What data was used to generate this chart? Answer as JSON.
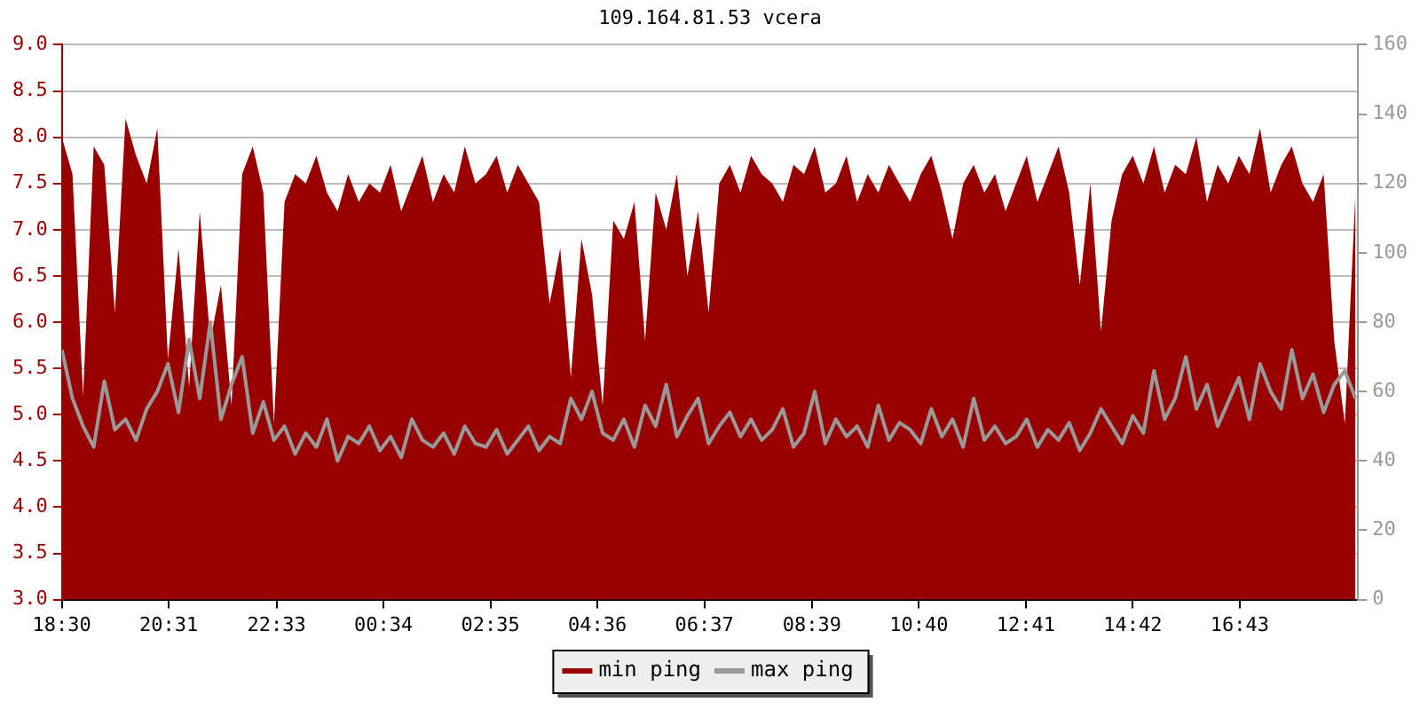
{
  "chart_data": {
    "type": "area",
    "title": "109.164.81.53 vcera",
    "x": [
      "--01-01T18:30",
      "--01-01T18:42",
      "--01-01T18:54",
      "--01-01T19:06",
      "--01-01T19:18",
      "--01-01T19:30",
      "--01-01T19:42",
      "--01-01T19:54",
      "--01-01T20:06",
      "--01-01T20:18",
      "--01-01T20:30",
      "--01-01T20:42",
      "--01-01T20:54",
      "--01-01T21:06",
      "--01-01T21:18",
      "--01-01T21:30",
      "--01-01T21:42",
      "--01-01T21:54",
      "--01-01T22:06",
      "--01-01T22:18",
      "--01-01T22:30",
      "--01-01T22:42",
      "--01-01T22:54",
      "--01-01T23:06",
      "--01-01T23:18",
      "--01-01T23:30",
      "--01-01T23:42",
      "--01-01T23:54",
      "--01-02T00:06",
      "--01-02T00:18",
      "--01-02T00:30",
      "--01-02T00:42",
      "--01-02T00:54",
      "--01-02T01:06",
      "--01-02T01:18",
      "--01-02T01:30",
      "--01-02T01:42",
      "--01-02T01:54",
      "--01-02T02:06",
      "--01-02T02:18",
      "--01-02T02:30",
      "--01-02T02:42",
      "--01-02T02:54",
      "--01-02T03:06",
      "--01-02T03:18",
      "--01-02T03:30",
      "--01-02T03:42",
      "--01-02T03:54",
      "--01-02T04:06",
      "--01-02T04:18",
      "--01-02T04:30",
      "--01-02T04:42",
      "--01-02T04:54",
      "--01-02T05:06",
      "--01-02T05:18",
      "--01-02T05:30",
      "--01-02T05:42",
      "--01-02T05:54",
      "--01-02T06:06",
      "--01-02T06:18",
      "--01-02T06:30",
      "--01-02T06:42",
      "--01-02T06:54",
      "--01-02T07:06",
      "--01-02T07:18",
      "--01-02T07:30",
      "--01-02T07:42",
      "--01-02T07:54",
      "--01-02T08:06",
      "--01-02T08:18",
      "--01-02T08:30",
      "--01-02T08:42",
      "--01-02T08:54",
      "--01-02T09:06",
      "--01-02T09:18",
      "--01-02T09:30",
      "--01-02T09:42",
      "--01-02T09:54",
      "--01-02T10:06",
      "--01-02T10:18",
      "--01-02T10:30",
      "--01-02T10:42",
      "--01-02T10:54",
      "--01-02T11:06",
      "--01-02T11:18",
      "--01-02T11:30",
      "--01-02T11:42",
      "--01-02T11:54",
      "--01-02T12:06",
      "--01-02T12:18",
      "--01-02T12:30",
      "--01-02T12:42",
      "--01-02T12:54",
      "--01-02T13:06",
      "--01-02T13:18",
      "--01-02T13:30",
      "--01-02T13:42",
      "--01-02T13:54",
      "--01-02T14:06",
      "--01-02T14:18",
      "--01-02T14:30",
      "--01-02T14:42",
      "--01-02T14:54",
      "--01-02T15:06",
      "--01-02T15:18",
      "--01-02T15:30",
      "--01-02T15:42",
      "--01-02T15:54",
      "--01-02T16:06",
      "--01-02T16:18",
      "--01-02T16:30",
      "--01-02T16:42",
      "--01-02T16:54",
      "--01-02T17:06",
      "--01-02T17:18",
      "--01-02T17:30",
      "--01-02T17:42",
      "--01-02T17:54",
      "--01-02T18:06",
      "--01-02T18:18",
      "--01-02T18:30",
      "--01-02T18:42",
      "--01-02T18:54"
    ],
    "series": [
      {
        "name": "min ping",
        "color": "#990000",
        "values": [
          8.0,
          7.6,
          5.2,
          7.9,
          7.7,
          6.1,
          8.2,
          7.8,
          7.5,
          8.1,
          5.6,
          6.8,
          5.3,
          7.2,
          5.8,
          6.4,
          5.1,
          7.6,
          7.9,
          7.4,
          4.9,
          7.3,
          7.6,
          7.5,
          7.8,
          7.4,
          7.2,
          7.6,
          7.3,
          7.5,
          7.4,
          7.7,
          7.2,
          7.5,
          7.8,
          7.3,
          7.6,
          7.4,
          7.9,
          7.5,
          7.6,
          7.8,
          7.4,
          7.7,
          7.5,
          7.3,
          6.2,
          6.8,
          5.4,
          6.9,
          6.3,
          5.1,
          7.1,
          6.9,
          7.3,
          5.8,
          7.4,
          7.0,
          7.6,
          6.5,
          7.2,
          6.1,
          7.5,
          7.7,
          7.4,
          7.8,
          7.6,
          7.5,
          7.3,
          7.7,
          7.6,
          7.9,
          7.4,
          7.5,
          7.8,
          7.3,
          7.6,
          7.4,
          7.7,
          7.5,
          7.3,
          7.6,
          7.8,
          7.4,
          6.9,
          7.5,
          7.7,
          7.4,
          7.6,
          7.2,
          7.5,
          7.8,
          7.3,
          7.6,
          7.9,
          7.4,
          6.4,
          7.5,
          5.9,
          7.1,
          7.6,
          7.8,
          7.5,
          7.9,
          7.4,
          7.7,
          7.6,
          8.0,
          7.3,
          7.7,
          7.5,
          7.8,
          7.6,
          8.1,
          7.4,
          7.7,
          7.9,
          7.5,
          7.3,
          7.6,
          5.8,
          4.9,
          7.4
        ]
      },
      {
        "name": "max ping",
        "type": "line",
        "axis": "y2",
        "color": "#999999",
        "values": [
          72,
          58,
          50,
          44,
          63,
          49,
          52,
          46,
          55,
          60,
          68,
          54,
          75,
          58,
          80,
          52,
          62,
          70,
          48,
          57,
          46,
          50,
          42,
          48,
          44,
          52,
          40,
          47,
          45,
          50,
          43,
          47,
          41,
          52,
          46,
          44,
          48,
          42,
          50,
          45,
          44,
          49,
          42,
          46,
          50,
          43,
          47,
          45,
          58,
          52,
          60,
          48,
          46,
          52,
          44,
          56,
          50,
          62,
          47,
          53,
          58,
          45,
          50,
          54,
          47,
          52,
          46,
          49,
          55,
          44,
          48,
          60,
          45,
          52,
          47,
          50,
          44,
          56,
          46,
          51,
          49,
          45,
          55,
          47,
          52,
          44,
          58,
          46,
          50,
          45,
          47,
          52,
          44,
          49,
          46,
          51,
          43,
          48,
          55,
          50,
          45,
          53,
          48,
          66,
          52,
          58,
          70,
          55,
          62,
          50,
          57,
          64,
          52,
          68,
          60,
          55,
          72,
          58,
          65,
          54,
          62,
          66,
          58
        ]
      }
    ],
    "xlim": [
      "--01-01T18:30",
      "--01-02T18:57"
    ],
    "xticks": [
      {
        "value": "--01-01T18:30",
        "label": "18:30"
      },
      {
        "value": "--01-01T20:31",
        "label": "20:31"
      },
      {
        "value": "--01-01T22:33",
        "label": "22:33"
      },
      {
        "value": "--01-02T00:34",
        "label": "00:34"
      },
      {
        "value": "--01-02T02:35",
        "label": "02:35"
      },
      {
        "value": "--01-02T04:36",
        "label": "04:36"
      },
      {
        "value": "--01-02T06:37",
        "label": "06:37"
      },
      {
        "value": "--01-02T08:39",
        "label": "08:39"
      },
      {
        "value": "--01-02T10:40",
        "label": "10:40"
      },
      {
        "value": "--01-02T12:41",
        "label": "12:41"
      },
      {
        "value": "--01-02T14:42",
        "label": "14:42"
      },
      {
        "value": "--01-02T16:43",
        "label": "16:43"
      }
    ],
    "ylim": [
      3,
      9
    ],
    "yticks": [
      {
        "value": 3,
        "label": "3.0"
      },
      {
        "value": 3.5,
        "label": "3.5"
      },
      {
        "value": 4,
        "label": "4.0"
      },
      {
        "value": 4.5,
        "label": "4.5"
      },
      {
        "value": 5,
        "label": "5.0"
      },
      {
        "value": 5.5,
        "label": "5.5"
      },
      {
        "value": 6,
        "label": "6.0"
      },
      {
        "value": 6.5,
        "label": "6.5"
      },
      {
        "value": 7,
        "label": "7.0"
      },
      {
        "value": 7.5,
        "label": "7.5"
      },
      {
        "value": 8,
        "label": "8.0"
      },
      {
        "value": 8.5,
        "label": "8.5"
      },
      {
        "value": 9,
        "label": "9.0"
      }
    ],
    "y2lim": [
      0,
      160
    ],
    "y2ticks": [
      0,
      20,
      40,
      60,
      80,
      100,
      120,
      140,
      160
    ],
    "grid": "y",
    "legend": "bottom"
  }
}
